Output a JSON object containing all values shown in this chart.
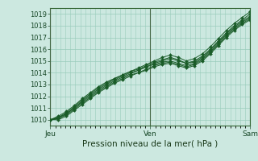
{
  "title": "Pression niveau de la mer( hPa )",
  "bg_color": "#cce8e0",
  "plot_bg_color": "#cce8e0",
  "grid_color": "#99ccbb",
  "line_color": "#1a5c28",
  "marker_color": "#1a5c28",
  "ylim": [
    1009.5,
    1019.5
  ],
  "yticks": [
    1010,
    1011,
    1012,
    1013,
    1014,
    1015,
    1016,
    1017,
    1018,
    1019
  ],
  "xtick_labels": [
    "Jeu",
    "Ven",
    "Sam"
  ],
  "xtick_positions": [
    0,
    0.5,
    1.0
  ],
  "xmax": 1.0,
  "series": [
    {
      "x": [
        0.0,
        0.04,
        0.08,
        0.12,
        0.16,
        0.2,
        0.24,
        0.28,
        0.32,
        0.36,
        0.4,
        0.44,
        0.48,
        0.52,
        0.56,
        0.6,
        0.64,
        0.68,
        0.72,
        0.76,
        0.8,
        0.84,
        0.88,
        0.92,
        0.96,
        1.0
      ],
      "y": [
        1010.0,
        1010.3,
        1010.7,
        1011.2,
        1011.8,
        1012.3,
        1012.8,
        1013.2,
        1013.5,
        1013.8,
        1014.1,
        1014.4,
        1014.7,
        1015.0,
        1015.3,
        1015.5,
        1015.3,
        1015.0,
        1015.2,
        1015.6,
        1016.2,
        1016.9,
        1017.6,
        1018.2,
        1018.7,
        1019.2
      ]
    },
    {
      "x": [
        0.0,
        0.04,
        0.08,
        0.12,
        0.16,
        0.2,
        0.24,
        0.28,
        0.32,
        0.36,
        0.4,
        0.44,
        0.48,
        0.52,
        0.56,
        0.6,
        0.64,
        0.68,
        0.72,
        0.76,
        0.8,
        0.84,
        0.88,
        0.92,
        0.96,
        1.0
      ],
      "y": [
        1010.0,
        1010.2,
        1010.6,
        1011.1,
        1011.7,
        1012.2,
        1012.7,
        1013.1,
        1013.5,
        1013.8,
        1014.1,
        1014.3,
        1014.6,
        1014.9,
        1015.1,
        1015.3,
        1015.1,
        1014.8,
        1015.0,
        1015.4,
        1016.0,
        1016.7,
        1017.4,
        1018.0,
        1018.5,
        1019.0
      ]
    },
    {
      "x": [
        0.0,
        0.04,
        0.08,
        0.12,
        0.16,
        0.2,
        0.24,
        0.28,
        0.32,
        0.36,
        0.4,
        0.44,
        0.48,
        0.52,
        0.56,
        0.6,
        0.64,
        0.68,
        0.72,
        0.76,
        0.8,
        0.84,
        0.88,
        0.92,
        0.96,
        1.0
      ],
      "y": [
        1010.0,
        1010.2,
        1010.5,
        1011.0,
        1011.6,
        1012.1,
        1012.6,
        1013.0,
        1013.4,
        1013.7,
        1014.0,
        1014.2,
        1014.5,
        1014.8,
        1015.0,
        1015.2,
        1015.0,
        1014.8,
        1014.9,
        1015.3,
        1015.9,
        1016.6,
        1017.3,
        1017.9,
        1018.4,
        1018.8
      ]
    },
    {
      "x": [
        0.0,
        0.04,
        0.08,
        0.12,
        0.16,
        0.2,
        0.24,
        0.28,
        0.32,
        0.36,
        0.4,
        0.44,
        0.48,
        0.52,
        0.56,
        0.6,
        0.64,
        0.68,
        0.72,
        0.76,
        0.8,
        0.84,
        0.88,
        0.92,
        0.96,
        1.0
      ],
      "y": [
        1010.0,
        1010.1,
        1010.5,
        1011.0,
        1011.5,
        1012.0,
        1012.5,
        1012.9,
        1013.3,
        1013.6,
        1013.9,
        1014.2,
        1014.5,
        1014.7,
        1014.9,
        1015.0,
        1014.8,
        1014.6,
        1014.8,
        1015.2,
        1015.8,
        1016.5,
        1017.2,
        1017.8,
        1018.3,
        1018.7
      ]
    },
    {
      "x": [
        0.0,
        0.04,
        0.08,
        0.12,
        0.16,
        0.2,
        0.24,
        0.28,
        0.32,
        0.36,
        0.4,
        0.44,
        0.48,
        0.52,
        0.56,
        0.6,
        0.64,
        0.68,
        0.72,
        0.76,
        0.8,
        0.84,
        0.88,
        0.92,
        0.96,
        1.0
      ],
      "y": [
        1010.0,
        1010.1,
        1010.4,
        1010.9,
        1011.4,
        1011.9,
        1012.4,
        1012.8,
        1013.2,
        1013.5,
        1013.8,
        1014.0,
        1014.3,
        1014.6,
        1014.8,
        1014.9,
        1014.7,
        1014.5,
        1014.7,
        1015.1,
        1015.7,
        1016.4,
        1017.1,
        1017.7,
        1018.2,
        1018.6
      ]
    },
    {
      "x": [
        0.0,
        0.04,
        0.08,
        0.12,
        0.16,
        0.2,
        0.24,
        0.28,
        0.32,
        0.36,
        0.4,
        0.44,
        0.48,
        0.52,
        0.56,
        0.6,
        0.64,
        0.68,
        0.72,
        0.76,
        0.8,
        0.84,
        0.88,
        0.92,
        0.96,
        1.0
      ],
      "y": [
        1010.0,
        1010.0,
        1010.3,
        1010.8,
        1011.3,
        1011.8,
        1012.3,
        1012.7,
        1013.1,
        1013.4,
        1013.7,
        1014.0,
        1014.2,
        1014.5,
        1014.7,
        1014.8,
        1014.6,
        1014.4,
        1014.6,
        1015.0,
        1015.6,
        1016.3,
        1017.0,
        1017.6,
        1018.1,
        1018.5
      ]
    }
  ]
}
